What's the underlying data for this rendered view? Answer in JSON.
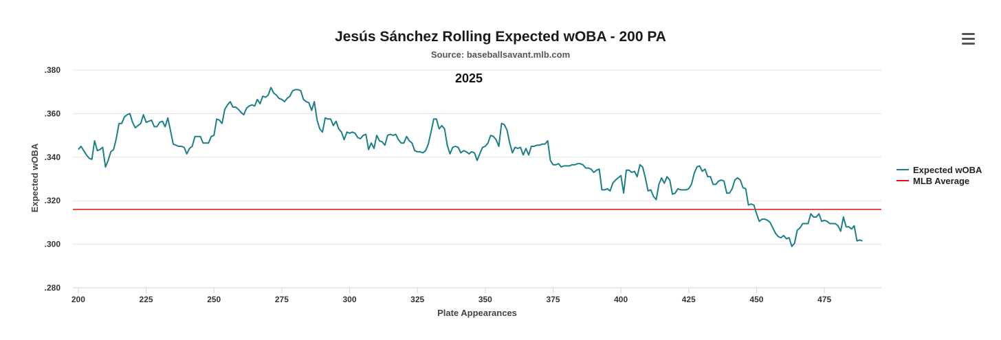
{
  "chart_data": {
    "type": "line",
    "title": "Jesús Sánchez Rolling Expected wOBA - 200 PA",
    "subtitle": "Source: baseballsavant.mlb.com",
    "annotation": "2025",
    "xlabel": "Plate Appearances",
    "ylabel": "Expected wOBA",
    "xlim": [
      198,
      496
    ],
    "ylim": [
      0.28,
      0.38
    ],
    "x_ticks": [
      200,
      225,
      250,
      275,
      300,
      325,
      350,
      375,
      400,
      425,
      450,
      475
    ],
    "x_tick_labels": [
      "200",
      "225",
      "250",
      "275",
      "300",
      "325",
      "350",
      "375",
      "400",
      "425",
      "450",
      "475"
    ],
    "y_ticks": [
      0.28,
      0.3,
      0.32,
      0.34,
      0.36,
      0.38
    ],
    "y_tick_labels": [
      ".280",
      ".300",
      ".320",
      ".340",
      ".360",
      ".380"
    ],
    "grid": true,
    "legend_position": "right",
    "series": [
      {
        "name": "Expected wOBA",
        "color": "#1a7f86",
        "points": [
          [
            200,
            0.3435
          ],
          [
            201,
            0.345
          ],
          [
            202,
            0.343
          ],
          [
            203,
            0.341
          ],
          [
            204,
            0.3395
          ],
          [
            205,
            0.339
          ],
          [
            206,
            0.3475
          ],
          [
            207,
            0.343
          ],
          [
            208,
            0.3435
          ],
          [
            209,
            0.3445
          ],
          [
            210,
            0.3355
          ],
          [
            211,
            0.3385
          ],
          [
            212,
            0.3425
          ],
          [
            213,
            0.3435
          ],
          [
            214,
            0.3485
          ],
          [
            215,
            0.3555
          ],
          [
            216,
            0.3555
          ],
          [
            217,
            0.3585
          ],
          [
            218,
            0.3595
          ],
          [
            219,
            0.36
          ],
          [
            220,
            0.356
          ],
          [
            221,
            0.3535
          ],
          [
            222,
            0.3545
          ],
          [
            223,
            0.3555
          ],
          [
            224,
            0.3595
          ],
          [
            225,
            0.356
          ],
          [
            226,
            0.3565
          ],
          [
            227,
            0.357
          ],
          [
            228,
            0.354
          ],
          [
            229,
            0.354
          ],
          [
            230,
            0.356
          ],
          [
            231,
            0.3565
          ],
          [
            232,
            0.354
          ],
          [
            233,
            0.358
          ],
          [
            234,
            0.352
          ],
          [
            235,
            0.346
          ],
          [
            236,
            0.3455
          ],
          [
            237,
            0.345
          ],
          [
            238,
            0.345
          ],
          [
            239,
            0.3445
          ],
          [
            240,
            0.3415
          ],
          [
            241,
            0.344
          ],
          [
            242,
            0.345
          ],
          [
            243,
            0.3495
          ],
          [
            244,
            0.3495
          ],
          [
            245,
            0.3495
          ],
          [
            246,
            0.3465
          ],
          [
            247,
            0.3465
          ],
          [
            248,
            0.3465
          ],
          [
            249,
            0.3495
          ],
          [
            250,
            0.35
          ],
          [
            251,
            0.3575
          ],
          [
            252,
            0.357
          ],
          [
            253,
            0.3555
          ],
          [
            254,
            0.362
          ],
          [
            255,
            0.364
          ],
          [
            256,
            0.3655
          ],
          [
            257,
            0.363
          ],
          [
            258,
            0.363
          ],
          [
            259,
            0.362
          ],
          [
            260,
            0.3605
          ],
          [
            261,
            0.3595
          ],
          [
            262,
            0.3625
          ],
          [
            263,
            0.3635
          ],
          [
            264,
            0.364
          ],
          [
            265,
            0.3635
          ],
          [
            266,
            0.3665
          ],
          [
            267,
            0.3645
          ],
          [
            268,
            0.368
          ],
          [
            269,
            0.3675
          ],
          [
            270,
            0.3685
          ],
          [
            271,
            0.372
          ],
          [
            272,
            0.3695
          ],
          [
            273,
            0.3685
          ],
          [
            274,
            0.367
          ],
          [
            275,
            0.3665
          ],
          [
            276,
            0.3655
          ],
          [
            277,
            0.367
          ],
          [
            278,
            0.368
          ],
          [
            279,
            0.3705
          ],
          [
            280,
            0.371
          ],
          [
            281,
            0.371
          ],
          [
            282,
            0.3705
          ],
          [
            283,
            0.3665
          ],
          [
            284,
            0.3655
          ],
          [
            285,
            0.365
          ],
          [
            286,
            0.3615
          ],
          [
            287,
            0.3655
          ],
          [
            288,
            0.357
          ],
          [
            289,
            0.353
          ],
          [
            290,
            0.3515
          ],
          [
            291,
            0.358
          ],
          [
            292,
            0.3575
          ],
          [
            293,
            0.3575
          ],
          [
            294,
            0.3545
          ],
          [
            295,
            0.3565
          ],
          [
            296,
            0.353
          ],
          [
            297,
            0.3515
          ],
          [
            298,
            0.348
          ],
          [
            299,
            0.3515
          ],
          [
            300,
            0.351
          ],
          [
            301,
            0.3515
          ],
          [
            302,
            0.351
          ],
          [
            303,
            0.349
          ],
          [
            304,
            0.3485
          ],
          [
            305,
            0.35
          ],
          [
            306,
            0.3505
          ],
          [
            307,
            0.3435
          ],
          [
            308,
            0.3465
          ],
          [
            309,
            0.344
          ],
          [
            310,
            0.35
          ],
          [
            311,
            0.3475
          ],
          [
            312,
            0.347
          ],
          [
            313,
            0.3455
          ],
          [
            314,
            0.35
          ],
          [
            315,
            0.3505
          ],
          [
            316,
            0.35
          ],
          [
            317,
            0.3505
          ],
          [
            318,
            0.348
          ],
          [
            319,
            0.3465
          ],
          [
            320,
            0.3465
          ],
          [
            321,
            0.3495
          ],
          [
            322,
            0.3475
          ],
          [
            323,
            0.3465
          ],
          [
            324,
            0.343
          ],
          [
            325,
            0.3425
          ],
          [
            326,
            0.3425
          ],
          [
            327,
            0.342
          ],
          [
            328,
            0.343
          ],
          [
            329,
            0.346
          ],
          [
            330,
            0.3515
          ],
          [
            331,
            0.3575
          ],
          [
            332,
            0.3575
          ],
          [
            333,
            0.353
          ],
          [
            334,
            0.3545
          ],
          [
            335,
            0.353
          ],
          [
            336,
            0.3455
          ],
          [
            337,
            0.3415
          ],
          [
            338,
            0.3445
          ],
          [
            339,
            0.345
          ],
          [
            340,
            0.3445
          ],
          [
            341,
            0.342
          ],
          [
            342,
            0.343
          ],
          [
            343,
            0.3425
          ],
          [
            344,
            0.3415
          ],
          [
            345,
            0.3425
          ],
          [
            346,
            0.342
          ],
          [
            347,
            0.3385
          ],
          [
            348,
            0.3415
          ],
          [
            349,
            0.3445
          ],
          [
            350,
            0.345
          ],
          [
            351,
            0.3465
          ],
          [
            352,
            0.35
          ],
          [
            353,
            0.3495
          ],
          [
            354,
            0.348
          ],
          [
            355,
            0.345
          ],
          [
            356,
            0.3555
          ],
          [
            357,
            0.355
          ],
          [
            358,
            0.3525
          ],
          [
            359,
            0.3465
          ],
          [
            360,
            0.342
          ],
          [
            361,
            0.3445
          ],
          [
            362,
            0.344
          ],
          [
            363,
            0.3445
          ],
          [
            364,
            0.341
          ],
          [
            365,
            0.344
          ],
          [
            366,
            0.341
          ],
          [
            367,
            0.345
          ],
          [
            368,
            0.345
          ],
          [
            369,
            0.3455
          ],
          [
            370,
            0.3455
          ],
          [
            371,
            0.346
          ],
          [
            372,
            0.346
          ],
          [
            373,
            0.3475
          ],
          [
            374,
            0.3385
          ],
          [
            375,
            0.3365
          ],
          [
            376,
            0.3365
          ],
          [
            377,
            0.337
          ],
          [
            378,
            0.3355
          ],
          [
            379,
            0.336
          ],
          [
            380,
            0.336
          ],
          [
            381,
            0.336
          ],
          [
            382,
            0.3365
          ],
          [
            383,
            0.3365
          ],
          [
            384,
            0.337
          ],
          [
            385,
            0.337
          ],
          [
            386,
            0.3365
          ],
          [
            387,
            0.335
          ],
          [
            388,
            0.335
          ],
          [
            389,
            0.3345
          ],
          [
            390,
            0.333
          ],
          [
            391,
            0.334
          ],
          [
            392,
            0.3345
          ],
          [
            393,
            0.325
          ],
          [
            394,
            0.325
          ],
          [
            395,
            0.3255
          ],
          [
            396,
            0.3245
          ],
          [
            397,
            0.328
          ],
          [
            398,
            0.3295
          ],
          [
            399,
            0.3305
          ],
          [
            400,
            0.3315
          ],
          [
            401,
            0.3235
          ],
          [
            402,
            0.334
          ],
          [
            403,
            0.334
          ],
          [
            404,
            0.333
          ],
          [
            405,
            0.3335
          ],
          [
            406,
            0.331
          ],
          [
            407,
            0.3365
          ],
          [
            408,
            0.3355
          ],
          [
            409,
            0.3305
          ],
          [
            410,
            0.3245
          ],
          [
            411,
            0.325
          ],
          [
            412,
            0.322
          ],
          [
            413,
            0.3205
          ],
          [
            414,
            0.3275
          ],
          [
            415,
            0.3305
          ],
          [
            416,
            0.328
          ],
          [
            417,
            0.331
          ],
          [
            418,
            0.3295
          ],
          [
            419,
            0.323
          ],
          [
            420,
            0.3235
          ],
          [
            421,
            0.3255
          ],
          [
            422,
            0.325
          ],
          [
            423,
            0.325
          ],
          [
            424,
            0.325
          ],
          [
            425,
            0.3255
          ],
          [
            426,
            0.3275
          ],
          [
            427,
            0.3325
          ],
          [
            428,
            0.3355
          ],
          [
            429,
            0.336
          ],
          [
            430,
            0.3335
          ],
          [
            431,
            0.3345
          ],
          [
            432,
            0.331
          ],
          [
            433,
            0.331
          ],
          [
            434,
            0.3275
          ],
          [
            435,
            0.3275
          ],
          [
            436,
            0.329
          ],
          [
            437,
            0.3295
          ],
          [
            438,
            0.329
          ],
          [
            439,
            0.3235
          ],
          [
            440,
            0.3235
          ],
          [
            441,
            0.3255
          ],
          [
            442,
            0.3295
          ],
          [
            443,
            0.3305
          ],
          [
            444,
            0.3295
          ],
          [
            445,
            0.326
          ],
          [
            446,
            0.3255
          ],
          [
            447,
            0.318
          ],
          [
            448,
            0.3185
          ],
          [
            449,
            0.318
          ],
          [
            450,
            0.314
          ],
          [
            451,
            0.3105
          ],
          [
            452,
            0.3115
          ],
          [
            453,
            0.3115
          ],
          [
            454,
            0.311
          ],
          [
            455,
            0.31
          ],
          [
            456,
            0.3075
          ],
          [
            457,
            0.305
          ],
          [
            458,
            0.3035
          ],
          [
            459,
            0.303
          ],
          [
            460,
            0.304
          ],
          [
            461,
            0.3025
          ],
          [
            462,
            0.303
          ],
          [
            463,
            0.299
          ],
          [
            464,
            0.3005
          ],
          [
            465,
            0.3065
          ],
          [
            466,
            0.3075
          ],
          [
            467,
            0.3095
          ],
          [
            468,
            0.3095
          ],
          [
            469,
            0.3095
          ],
          [
            470,
            0.314
          ],
          [
            471,
            0.3125
          ],
          [
            472,
            0.3125
          ],
          [
            473,
            0.314
          ],
          [
            474,
            0.3105
          ],
          [
            475,
            0.311
          ],
          [
            476,
            0.3105
          ],
          [
            477,
            0.3095
          ],
          [
            478,
            0.3095
          ],
          [
            479,
            0.3095
          ],
          [
            480,
            0.3085
          ],
          [
            481,
            0.306
          ],
          [
            482,
            0.3125
          ],
          [
            483,
            0.308
          ],
          [
            484,
            0.308
          ],
          [
            485,
            0.307
          ],
          [
            486,
            0.3085
          ],
          [
            487,
            0.3015
          ],
          [
            488,
            0.302
          ],
          [
            489,
            0.3015
          ]
        ]
      },
      {
        "name": "MLB Average",
        "color": "#e01010",
        "value": 0.316
      }
    ]
  },
  "ui": {
    "menu_icon": "hamburger-menu-icon"
  }
}
